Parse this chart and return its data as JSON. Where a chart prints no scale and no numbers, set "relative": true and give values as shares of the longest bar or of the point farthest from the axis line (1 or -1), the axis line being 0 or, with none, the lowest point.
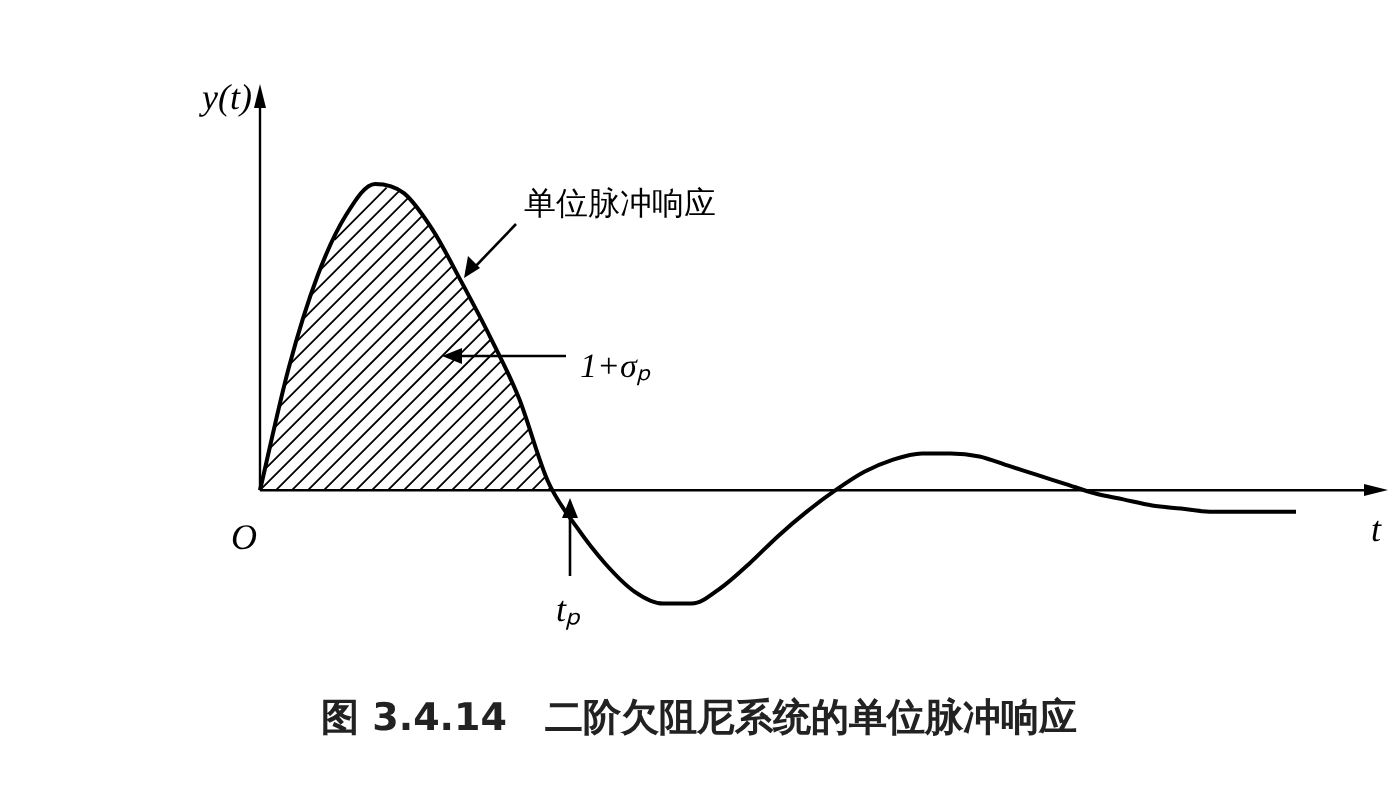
{
  "chart_data": {
    "type": "line",
    "relative": true,
    "title": "图 3.4.14　二阶欠阻尼系统的单位脉冲响应",
    "xlabel": "t",
    "ylabel": "y(t)",
    "color": "#000000",
    "marker": "none",
    "line_style": "solid",
    "legend": false,
    "tick_labels": false,
    "categories": [
      null,
      null,
      null,
      null,
      null,
      null,
      null,
      null,
      null,
      null,
      null,
      null,
      null,
      null,
      null,
      null,
      null,
      null,
      null,
      null,
      null,
      null,
      null,
      null,
      null,
      null,
      null,
      null,
      null,
      null,
      null,
      null,
      null,
      null,
      null,
      null,
      null
    ],
    "values": [
      0,
      0.4,
      0.7,
      0.9,
      1,
      0.97,
      0.85,
      0.68,
      0.5,
      0.3,
      0.03,
      -0.12,
      -0.24,
      -0.33,
      -0.37,
      -0.37,
      -0.32,
      -0.24,
      -0.15,
      -0.07,
      0,
      0.06,
      0.1,
      0.12,
      0.12,
      0.11,
      0.08,
      0.05,
      0.02,
      -0.01,
      -0.03,
      -0.05,
      -0.06,
      -0.07,
      -0.07,
      -0.07,
      -0.07
    ],
    "annotations": [
      "单位脉冲响应",
      "1+σₚ",
      "tₚ",
      "O"
    ]
  }
}
